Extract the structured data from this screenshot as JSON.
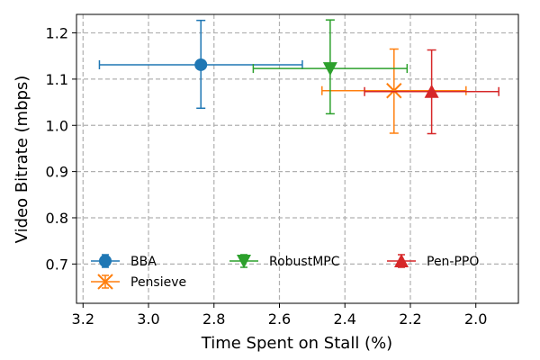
{
  "chart_data": {
    "type": "scatter",
    "title": "",
    "xlabel": "Time Spent on Stall (%)",
    "ylabel": "Video Bitrate (mbps)",
    "xlim": [
      3.22,
      1.87
    ],
    "ylim": [
      0.615,
      1.24
    ],
    "x_inverted": true,
    "grid": true,
    "x_ticks": [
      3.2,
      3.0,
      2.8,
      2.6,
      2.4,
      2.2,
      2.0
    ],
    "x_tick_labels": [
      "3.2",
      "3.0",
      "2.8",
      "2.6",
      "2.4",
      "2.2",
      "2.0"
    ],
    "y_ticks": [
      0.7,
      0.8,
      0.9,
      1.0,
      1.1,
      1.2
    ],
    "y_tick_labels": [
      "0.7",
      "0.8",
      "0.9",
      "1.0",
      "1.1",
      "1.2"
    ],
    "legend_placement": "lower-center",
    "series": [
      {
        "name": "BBA",
        "marker": "circle",
        "color": "#1f77b4",
        "x": 2.84,
        "y": 1.131,
        "xerr": [
          3.15,
          2.53
        ],
        "yerr": [
          1.037,
          1.227
        ]
      },
      {
        "name": "Pensieve",
        "marker": "x",
        "color": "#ff7f0e",
        "x": 2.25,
        "y": 1.075,
        "xerr": [
          2.47,
          2.03
        ],
        "yerr": [
          0.983,
          1.165
        ]
      },
      {
        "name": "RobustMPC",
        "marker": "triangle-down",
        "color": "#2ca02c",
        "x": 2.445,
        "y": 1.123,
        "xerr": [
          2.68,
          2.21
        ],
        "yerr": [
          1.025,
          1.228
        ]
      },
      {
        "name": "Pen-PPO",
        "marker": "triangle-up",
        "color": "#d62728",
        "x": 2.135,
        "y": 1.073,
        "xerr": [
          2.34,
          1.93
        ],
        "yerr": [
          0.982,
          1.163
        ]
      }
    ]
  }
}
